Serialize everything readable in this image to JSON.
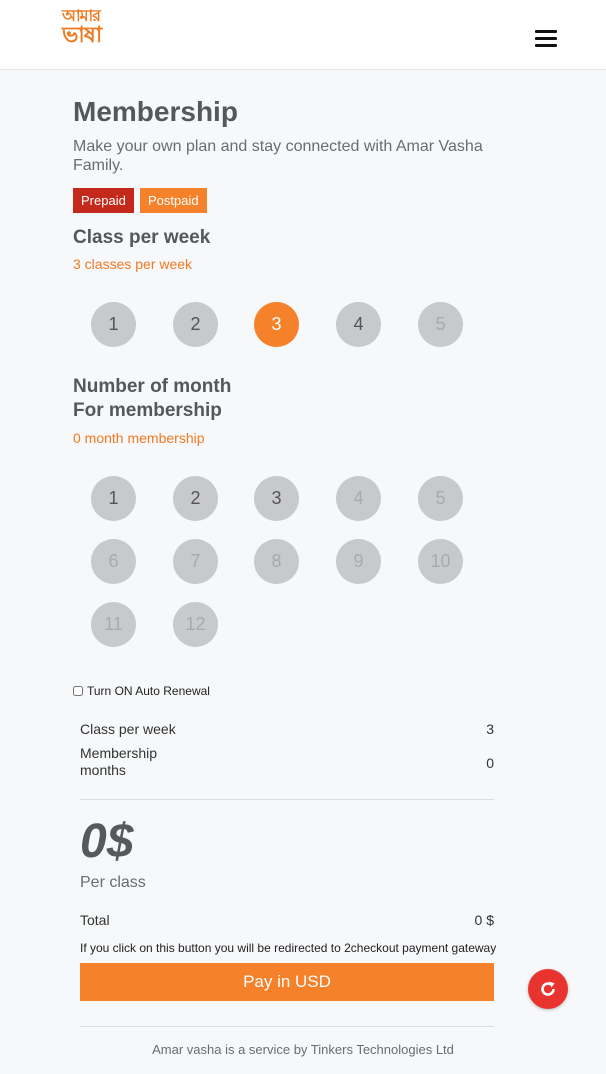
{
  "header": {
    "logo_line1": "আমার",
    "logo_line2": "ভাষা"
  },
  "page": {
    "title": "Membership",
    "subtitle": "Make your own plan and stay connected with Amar Vasha Family.",
    "plan_tabs": [
      "Prepaid",
      "Postpaid"
    ]
  },
  "class_section": {
    "title": "Class per week",
    "selected_note": "3 classes per week",
    "options": [
      "1",
      "2",
      "3",
      "4",
      "5"
    ],
    "selected": "3"
  },
  "month_section": {
    "title_line1": "Number of month",
    "title_line2": "For membership",
    "selected_note": "0 month membership",
    "options": [
      "1",
      "2",
      "3",
      "4",
      "5",
      "6",
      "7",
      "8",
      "9",
      "10",
      "11",
      "12"
    ]
  },
  "auto_renewal_label": "Turn ON Auto Renewal",
  "summary": {
    "class_label": "Class per week",
    "class_value": "3",
    "months_label_1": "Membership",
    "months_label_2": "months",
    "months_value": "0",
    "price": "0$",
    "per_label": "Per class",
    "total_label": "Total",
    "total_value": "0 $",
    "redirect_note": "If you click on this button you will be redirected to 2checkout payment gateway",
    "pay_label": "Pay in USD"
  },
  "footer": {
    "text": "Amar vasha is a service by Tinkers Technologies Ltd"
  },
  "colors": {
    "accent": "#f5822a",
    "prepaid": "#c4291b",
    "fab": "#e8332f"
  },
  "icons": {
    "menu": "hamburger-icon",
    "refresh": "refresh-icon"
  }
}
